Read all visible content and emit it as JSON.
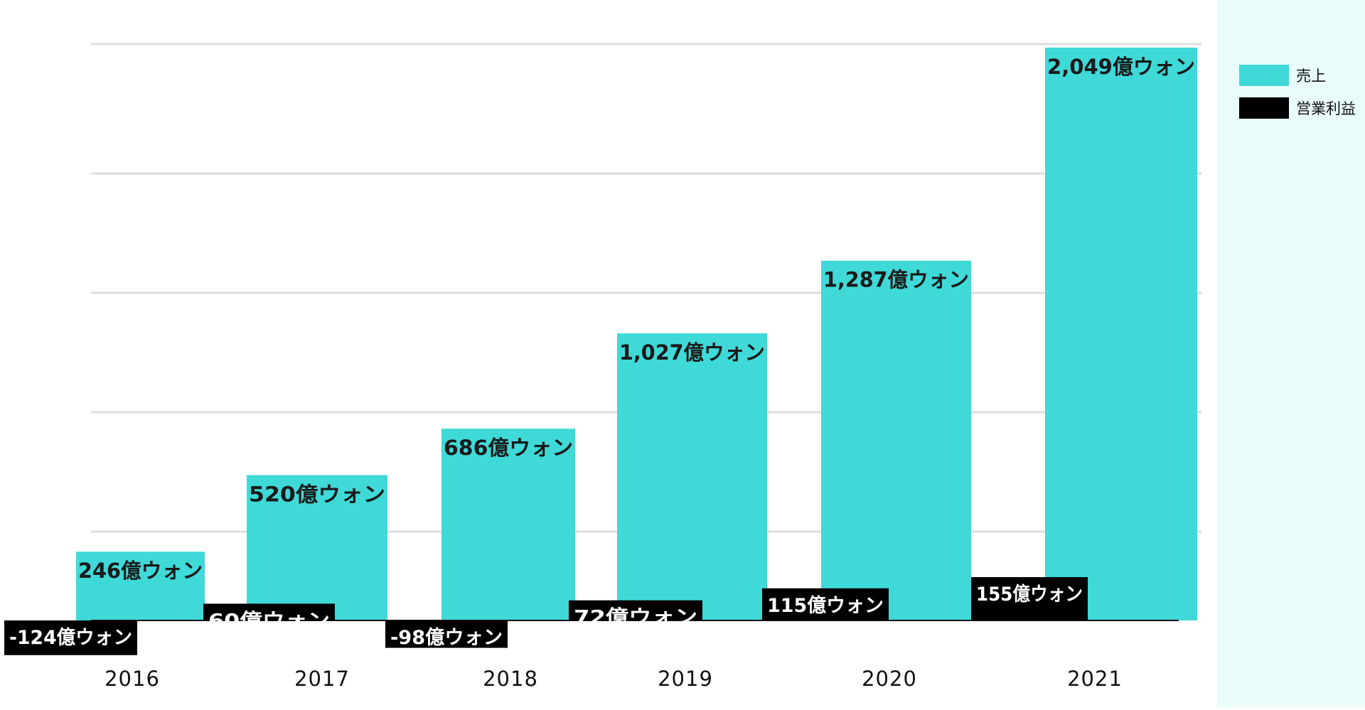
{
  "chart_data": {
    "type": "bar",
    "title": "",
    "xlabel": "",
    "ylabel": "",
    "categories": [
      "2016",
      "2017",
      "2018",
      "2019",
      "2020",
      "2021"
    ],
    "ylim": [
      -200,
      2500
    ],
    "grid": true,
    "legend_position": "right",
    "series": [
      {
        "name": "売上",
        "color": "#3fd9d8",
        "values": [
          246,
          520,
          686,
          1027,
          1287,
          2049
        ],
        "labels": [
          "246億ウォン",
          "520億ウォン",
          "686億ウォン",
          "1,027億ウォン",
          "1,287億ウォン",
          "2,049億ウォン"
        ]
      },
      {
        "name": "営業利益",
        "color": "#000000",
        "values": [
          -124,
          60,
          -98,
          72,
          115,
          155
        ],
        "labels": [
          "-124億ウォン",
          "60億ウォン",
          "-98億ウォン",
          "72億ウォン",
          "115億ウォン",
          "155億ウォン"
        ]
      }
    ]
  }
}
